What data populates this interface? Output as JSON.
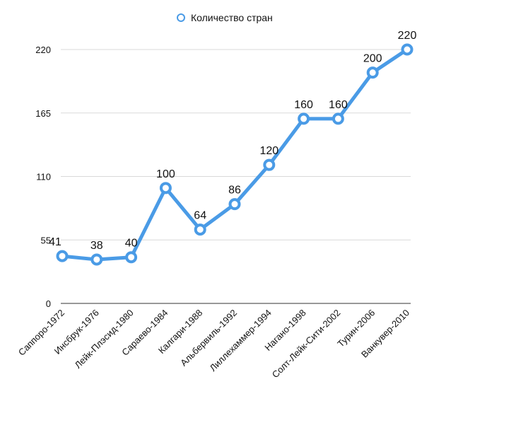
{
  "chart_data": {
    "type": "line",
    "categories": [
      "Саппоро-1972",
      "Инсбрук-1976",
      "Лейк-Плэсид-1980",
      "Сараево-1984",
      "Калгари-1988",
      "Альбервиль-1992",
      "Лиллехаммер-1994",
      "Нагано-1998",
      "Солт-Лейк-Сити-2002",
      "Турин-2006",
      "Ванкувер-2010"
    ],
    "series": [
      {
        "name": "Количество стран",
        "values": [
          41,
          38,
          40,
          100,
          64,
          86,
          120,
          160,
          160,
          200,
          220
        ]
      }
    ],
    "ylim": [
      0,
      220
    ],
    "yticks": [
      "0",
      "55",
      "110",
      "165",
      "220"
    ],
    "grid": true,
    "legend": "top",
    "colors": {
      "line": "#4a9be6",
      "marker_fill": "#ffffff",
      "grid": "#d9d9d9"
    }
  }
}
